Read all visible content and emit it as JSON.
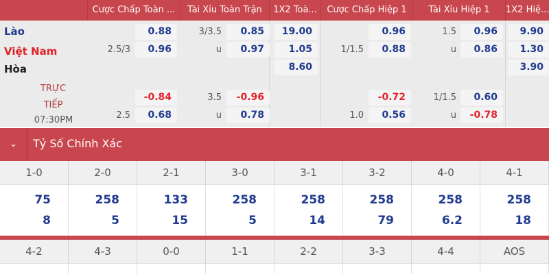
{
  "header": {
    "columns": [
      "Cược Chấp Toàn ...",
      "Tài Xỉu Toàn Trận",
      "1X2 Toà...",
      "Cược Chấp Hiệp 1",
      "Tài Xỉu Hiệp 1",
      "1X2 Hiệ..."
    ]
  },
  "teams": {
    "home": "Lào",
    "away": "Việt Nam",
    "draw": "Hòa"
  },
  "live": {
    "line1": "TRỰC",
    "line2": "TIẾP",
    "time": "07:30PM"
  },
  "colors": {
    "header_bg": "#c8464d",
    "odds_blue": "#1f3a8f",
    "odds_red": "#e1232b",
    "away_team": "#e1232b"
  },
  "main_odds": [
    {
      "label": "",
      "value": "0.88"
    },
    {
      "label": "2.5/3",
      "value": "0.96"
    },
    {
      "label": "3/3.5",
      "value": "0.85"
    },
    {
      "label": "u",
      "value": "0.97"
    },
    {
      "value": "19.00"
    },
    {
      "value": "1.05"
    },
    {
      "value": "8.60"
    },
    {
      "label": "",
      "value": "0.96"
    },
    {
      "label": "1/1.5",
      "value": "0.88"
    },
    {
      "label": "1.5",
      "value": "0.96"
    },
    {
      "label": "u",
      "value": "0.86"
    },
    {
      "value": "9.90"
    },
    {
      "value": "1.30"
    },
    {
      "value": "3.90"
    }
  ],
  "live_odds": [
    {
      "label": "",
      "value": "-0.84"
    },
    {
      "label": "2.5",
      "value": "0.68"
    },
    {
      "label": "3.5",
      "value": "-0.96"
    },
    {
      "label": "u",
      "value": "0.78"
    },
    {
      "label": "",
      "value": "-0.72"
    },
    {
      "label": "1.0",
      "value": "0.56"
    },
    {
      "label": "1/1.5",
      "value": "0.60"
    },
    {
      "label": "u",
      "value": "-0.78"
    }
  ],
  "correct_score": {
    "title": "Tỷ Số Chính Xác",
    "row1": [
      {
        "score": "1-0",
        "a": "75",
        "b": "8"
      },
      {
        "score": "2-0",
        "a": "258",
        "b": "5"
      },
      {
        "score": "2-1",
        "a": "133",
        "b": "15"
      },
      {
        "score": "3-0",
        "a": "258",
        "b": "5"
      },
      {
        "score": "3-1",
        "a": "258",
        "b": "14"
      },
      {
        "score": "3-2",
        "a": "258",
        "b": "79"
      },
      {
        "score": "4-0",
        "a": "258",
        "b": "6.2"
      },
      {
        "score": "4-1",
        "a": "258",
        "b": "18"
      }
    ],
    "row2": [
      {
        "score": "4-2"
      },
      {
        "score": "4-3"
      },
      {
        "score": "0-0"
      },
      {
        "score": "1-1"
      },
      {
        "score": "2-2"
      },
      {
        "score": "3-3"
      },
      {
        "score": "4-4"
      },
      {
        "score": "AOS"
      }
    ]
  }
}
